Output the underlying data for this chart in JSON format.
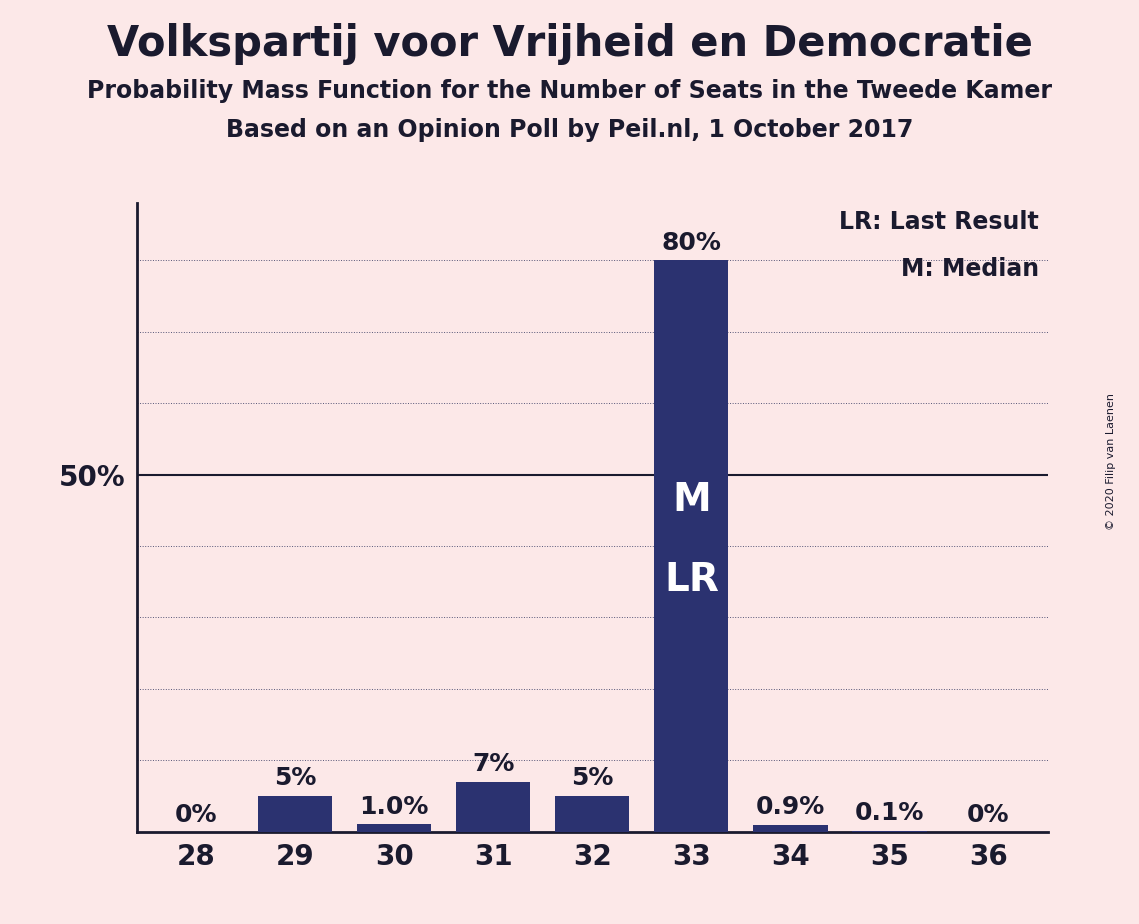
{
  "title": "Volkspartij voor Vrijheid en Democratie",
  "subtitle1": "Probability Mass Function for the Number of Seats in the Tweede Kamer",
  "subtitle2": "Based on an Opinion Poll by Peil.nl, 1 October 2017",
  "copyright": "© 2020 Filip van Laenen",
  "categories": [
    28,
    29,
    30,
    31,
    32,
    33,
    34,
    35,
    36
  ],
  "values": [
    0.0,
    5.0,
    1.0,
    7.0,
    5.0,
    80.0,
    0.9,
    0.1,
    0.0
  ],
  "bar_color": "#2b3270",
  "background_color": "#fce8e8",
  "label_color": "#1a1a2e",
  "bar_labels": [
    "0%",
    "5%",
    "1.0%",
    "7%",
    "5%",
    "80%",
    "0.9%",
    "0.1%",
    "0%"
  ],
  "median_bar": 33,
  "last_result_bar": 33,
  "median_label": "M",
  "last_result_label": "LR",
  "legend_lr": "LR: Last Result",
  "legend_m": "M: Median",
  "yticks": [
    10,
    20,
    30,
    40,
    50,
    60,
    70,
    80
  ],
  "ylim": [
    0,
    88
  ],
  "title_fontsize": 30,
  "subtitle_fontsize": 17,
  "bar_label_fontsize": 18,
  "axis_tick_fontsize": 20,
  "legend_fontsize": 17,
  "inside_label_fontsize": 28
}
